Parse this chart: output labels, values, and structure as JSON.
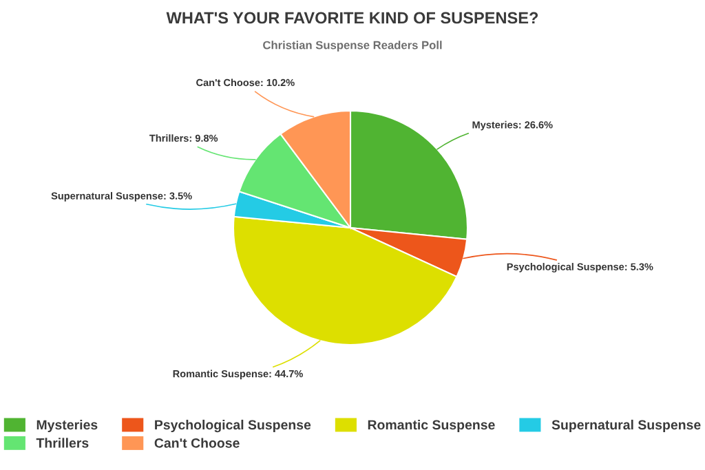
{
  "chart_data": {
    "type": "pie",
    "title": "WHAT'S YOUR FAVORITE KIND OF SUSPENSE?",
    "subtitle": "Christian Suspense Readers Poll",
    "categories": [
      "Mysteries",
      "Psychological Suspense",
      "Romantic Suspense",
      "Supernatural Suspense",
      "Thrillers",
      "Can't Choose"
    ],
    "values": [
      26.6,
      5.3,
      44.7,
      3.5,
      9.8,
      10.2
    ],
    "colors": [
      "#50b432",
      "#ed561b",
      "#dddf00",
      "#24cbe5",
      "#64e572",
      "#ff9655"
    ],
    "value_labels": [
      "Mysteries: 26.6%",
      "Psychological Suspense: 5.3%",
      "Romantic Suspense: 44.7%",
      "Supernatural Suspense: 3.5%",
      "Thrillers: 9.8%",
      "Can't Choose: 10.2%"
    ],
    "legend": "bottom"
  }
}
